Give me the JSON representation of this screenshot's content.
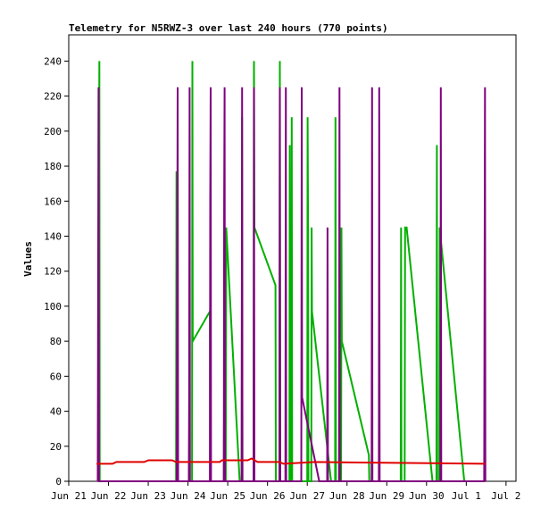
{
  "chart_data": {
    "type": "line",
    "title": "Telemetry for N5RWZ-3 over last 240 hours (770 points)",
    "ylabel": "Values",
    "xlabel": "",
    "ylim": [
      0,
      255
    ],
    "xlim": [
      0,
      11.25
    ],
    "yticks": [
      0,
      20,
      40,
      60,
      80,
      100,
      120,
      140,
      160,
      180,
      200,
      220,
      240
    ],
    "xticks": [
      {
        "label": "Jun 21",
        "x": 0
      },
      {
        "label": "Jun 22",
        "x": 1
      },
      {
        "label": "Jun 23",
        "x": 2
      },
      {
        "label": "Jun 24",
        "x": 3
      },
      {
        "label": "Jun 25",
        "x": 4
      },
      {
        "label": "Jun 26",
        "x": 5
      },
      {
        "label": "Jun 27",
        "x": 6
      },
      {
        "label": "Jun 28",
        "x": 7
      },
      {
        "label": "Jun 29",
        "x": 8
      },
      {
        "label": "Jun 30",
        "x": 9
      },
      {
        "label": "Jul 1",
        "x": 10
      },
      {
        "label": "Jul 2",
        "x": 11
      }
    ],
    "grid": false,
    "series": [
      {
        "color": "#00b000",
        "points": [
          [
            0.75,
            0
          ],
          [
            0.76,
            145
          ],
          [
            0.77,
            240
          ],
          [
            0.78,
            0
          ],
          [
            2.7,
            0
          ],
          [
            2.71,
            177
          ],
          [
            2.72,
            0
          ],
          [
            3.1,
            0
          ],
          [
            3.11,
            240
          ],
          [
            3.12,
            80
          ],
          [
            3.55,
            97
          ],
          [
            3.56,
            0
          ],
          [
            3.9,
            0
          ],
          [
            3.91,
            65
          ],
          [
            3.92,
            0
          ],
          [
            3.95,
            0
          ],
          [
            3.96,
            145
          ],
          [
            4.3,
            0
          ],
          [
            4.35,
            0
          ],
          [
            4.36,
            208
          ],
          [
            4.37,
            0
          ],
          [
            4.65,
            0
          ],
          [
            4.66,
            240
          ],
          [
            4.67,
            145
          ],
          [
            5.2,
            112
          ],
          [
            5.21,
            0
          ],
          [
            5.3,
            0
          ],
          [
            5.31,
            240
          ],
          [
            5.32,
            0
          ],
          [
            5.55,
            0
          ],
          [
            5.56,
            192
          ],
          [
            5.57,
            0
          ],
          [
            5.6,
            0
          ],
          [
            5.61,
            208
          ],
          [
            5.62,
            0
          ],
          [
            6.0,
            0
          ],
          [
            6.01,
            208
          ],
          [
            6.02,
            145
          ],
          [
            6.03,
            0
          ],
          [
            6.1,
            0
          ],
          [
            6.11,
            145
          ],
          [
            6.12,
            97
          ],
          [
            6.6,
            0
          ],
          [
            6.7,
            0
          ],
          [
            6.71,
            208
          ],
          [
            6.72,
            0
          ],
          [
            6.85,
            0
          ],
          [
            6.86,
            145
          ],
          [
            6.87,
            80
          ],
          [
            7.55,
            15
          ],
          [
            7.56,
            0
          ],
          [
            8.35,
            0
          ],
          [
            8.36,
            145
          ],
          [
            8.37,
            0
          ],
          [
            8.45,
            0
          ],
          [
            8.46,
            145
          ],
          [
            8.5,
            145
          ],
          [
            9.15,
            0
          ],
          [
            9.25,
            0
          ],
          [
            9.26,
            192
          ],
          [
            9.27,
            0
          ],
          [
            9.32,
            0
          ],
          [
            9.33,
            145
          ],
          [
            9.95,
            0
          ]
        ]
      },
      {
        "color": "#800080",
        "points": [
          [
            0.73,
            0
          ],
          [
            0.74,
            128
          ],
          [
            0.75,
            225
          ],
          [
            0.76,
            0
          ],
          [
            2.72,
            0
          ],
          [
            2.73,
            128
          ],
          [
            2.74,
            225
          ],
          [
            2.75,
            0
          ],
          [
            3.02,
            0
          ],
          [
            3.03,
            48
          ],
          [
            3.04,
            225
          ],
          [
            3.05,
            0
          ],
          [
            3.55,
            0
          ],
          [
            3.56,
            160
          ],
          [
            3.57,
            225
          ],
          [
            3.58,
            0
          ],
          [
            3.9,
            0
          ],
          [
            3.91,
            160
          ],
          [
            3.92,
            225
          ],
          [
            3.93,
            0
          ],
          [
            4.35,
            0
          ],
          [
            4.36,
            225
          ],
          [
            4.37,
            0
          ],
          [
            4.65,
            0
          ],
          [
            4.66,
            225
          ],
          [
            4.67,
            0
          ],
          [
            5.3,
            0
          ],
          [
            5.31,
            225
          ],
          [
            5.32,
            0
          ],
          [
            5.45,
            0
          ],
          [
            5.46,
            225
          ],
          [
            5.47,
            0
          ],
          [
            5.85,
            0
          ],
          [
            5.86,
            225
          ],
          [
            5.87,
            48
          ],
          [
            6.3,
            0
          ],
          [
            6.5,
            0
          ],
          [
            6.51,
            145
          ],
          [
            6.52,
            0
          ],
          [
            6.8,
            0
          ],
          [
            6.81,
            225
          ],
          [
            6.82,
            0
          ],
          [
            7.62,
            0
          ],
          [
            7.63,
            225
          ],
          [
            7.64,
            0
          ],
          [
            7.8,
            0
          ],
          [
            7.81,
            225
          ],
          [
            7.82,
            0
          ],
          [
            9.35,
            0
          ],
          [
            9.36,
            225
          ],
          [
            9.37,
            0
          ],
          [
            10.45,
            0
          ],
          [
            10.46,
            112
          ],
          [
            10.47,
            225
          ],
          [
            10.48,
            0
          ]
        ]
      },
      {
        "color": "#e00000",
        "points": [
          [
            0.7,
            10
          ],
          [
            1.1,
            10
          ],
          [
            1.2,
            11
          ],
          [
            1.9,
            11
          ],
          [
            2.0,
            12
          ],
          [
            2.6,
            12
          ],
          [
            2.7,
            11
          ],
          [
            3.8,
            11
          ],
          [
            3.85,
            12
          ],
          [
            4.5,
            12
          ],
          [
            4.6,
            13
          ],
          [
            4.75,
            11
          ],
          [
            5.3,
            11
          ],
          [
            5.4,
            10
          ],
          [
            6.2,
            11
          ],
          [
            10.48,
            10
          ]
        ]
      }
    ]
  }
}
